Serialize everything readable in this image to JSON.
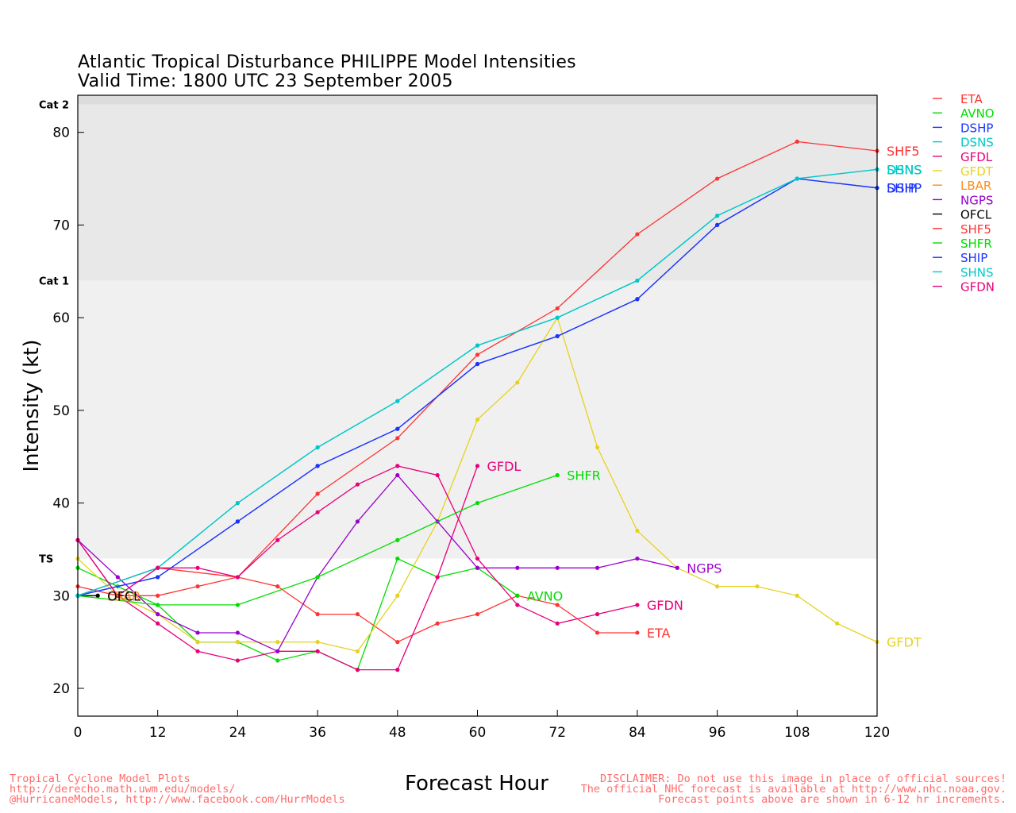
{
  "title_line1": "Atlantic Tropical Disturbance PHILIPPE Model Intensities",
  "title_line2": "Valid Time: 1800 UTC 23 September 2005",
  "footer_left": [
    "Tropical Cyclone Model Plots",
    "http://derecho.math.uwm.edu/models/",
    "@HurricaneModels, http://www.facebook.com/HurrModels"
  ],
  "footer_right": [
    "DISCLAIMER: Do not use this image in place of official sources!",
    "The official NHC forecast is available at http://www.nhc.noaa.gov.",
    "Forecast points above are shown in 6-12 hr increments."
  ],
  "chart_data": {
    "type": "line",
    "xlabel": "Forecast Hour",
    "ylabel": "Intensity (kt)",
    "xlim": [
      0,
      120
    ],
    "ylim": [
      17,
      84
    ],
    "xticks": [
      0,
      12,
      24,
      36,
      48,
      60,
      72,
      84,
      96,
      108,
      120
    ],
    "yticks": [
      20,
      30,
      40,
      50,
      60,
      70,
      80
    ],
    "bands": [
      {
        "label": "TS",
        "from": 34,
        "to": 64,
        "color": "#f0f0f0"
      },
      {
        "label": "Cat 1",
        "from": 64,
        "to": 83,
        "color": "#e8e8e8"
      },
      {
        "label": "Cat 2",
        "from": 83,
        "to": 84,
        "color": "#dcdcdc"
      }
    ],
    "series": [
      {
        "name": "ETA",
        "color": "#ff3333",
        "label": "ETA",
        "x": [
          0,
          6,
          12,
          18,
          24,
          30,
          36,
          42,
          48,
          54,
          60,
          66,
          72,
          78,
          84
        ],
        "y": [
          31,
          30,
          30,
          31,
          32,
          31,
          28,
          28,
          25,
          27,
          28,
          30,
          29,
          26,
          26
        ]
      },
      {
        "name": "AVNO",
        "color": "#00dd00",
        "label": "AVNO",
        "x": [
          0,
          6,
          12,
          18,
          24,
          30,
          36,
          42,
          48,
          54,
          60,
          66
        ],
        "y": [
          33,
          31,
          29,
          25,
          25,
          23,
          24,
          22,
          34,
          32,
          33,
          30
        ]
      },
      {
        "name": "DSHP",
        "color": "#1a33ff",
        "label": "DSHP",
        "x": [
          0,
          12,
          24,
          36,
          48,
          60,
          72,
          84,
          96,
          108,
          120
        ],
        "y": [
          30,
          32,
          38,
          44,
          48,
          55,
          58,
          62,
          70,
          75,
          74
        ]
      },
      {
        "name": "DSNS",
        "color": "#00c8c8",
        "label": "DSNS",
        "x": [
          0,
          12,
          24,
          36,
          48,
          60,
          72,
          84,
          96,
          108,
          120
        ],
        "y": [
          30,
          33,
          40,
          46,
          51,
          57,
          60,
          64,
          71,
          75,
          76
        ]
      },
      {
        "name": "GFDL",
        "color": "#e6007a",
        "label": "GFDL",
        "x": [
          0,
          6,
          12,
          18,
          24,
          30,
          36,
          42,
          48,
          54,
          60
        ],
        "y": [
          36,
          30,
          27,
          24,
          23,
          24,
          24,
          22,
          22,
          32,
          44
        ]
      },
      {
        "name": "GFDT",
        "color": "#e6d21e",
        "label": "GFDT",
        "x": [
          0,
          6,
          12,
          18,
          24,
          30,
          36,
          42,
          48,
          54,
          60,
          66,
          72,
          78,
          84,
          90,
          96,
          102,
          108,
          114,
          120
        ],
        "y": [
          34,
          30,
          28,
          25,
          25,
          25,
          25,
          24,
          30,
          38,
          49,
          53,
          60,
          46,
          37,
          33,
          31,
          31,
          30,
          27,
          25
        ]
      },
      {
        "name": "LBAR",
        "color": "#ff8c1a",
        "label": "LBAR",
        "x": [
          0,
          3
        ],
        "y": [
          30,
          30
        ]
      },
      {
        "name": "NGPS",
        "color": "#9900cc",
        "label": "NGPS",
        "x": [
          0,
          6,
          12,
          18,
          24,
          30,
          36,
          42,
          48,
          54,
          60,
          66,
          72,
          78,
          84,
          90
        ],
        "y": [
          36,
          32,
          28,
          26,
          26,
          24,
          32,
          38,
          43,
          38,
          33,
          33,
          33,
          33,
          34,
          33
        ]
      },
      {
        "name": "OFCL",
        "color": "#000000",
        "label": "OFCL",
        "x": [
          0,
          3
        ],
        "y": [
          30,
          30
        ]
      },
      {
        "name": "SHF5",
        "color": "#ff3333",
        "label": "SHF5",
        "x": [
          0,
          12,
          24,
          36,
          48,
          60,
          72,
          84,
          96,
          108,
          120
        ],
        "y": [
          30,
          33,
          32,
          41,
          47,
          56,
          61,
          69,
          75,
          79,
          78
        ]
      },
      {
        "name": "SHFR",
        "color": "#00dd00",
        "label": "SHFR",
        "x": [
          0,
          12,
          24,
          36,
          48,
          60,
          72
        ],
        "y": [
          30,
          29,
          29,
          32,
          36,
          40,
          43
        ]
      },
      {
        "name": "SHIP",
        "color": "#1a33ff",
        "label": "SHIP",
        "x": [
          0,
          12,
          24,
          36,
          48,
          60,
          72,
          84,
          96,
          108,
          120
        ],
        "y": [
          30,
          32,
          38,
          44,
          48,
          55,
          58,
          62,
          70,
          75,
          74
        ]
      },
      {
        "name": "SHNS",
        "color": "#00c8c8",
        "label": "SHNS",
        "x": [
          0,
          12,
          24,
          36,
          48,
          60,
          72,
          84,
          96,
          108,
          120
        ],
        "y": [
          30,
          33,
          40,
          46,
          51,
          57,
          60,
          64,
          71,
          75,
          76
        ]
      },
      {
        "name": "GFDN",
        "color": "#e6007a",
        "label": "GFDN",
        "x": [
          0,
          6,
          12,
          18,
          24,
          30,
          36,
          42,
          48,
          54,
          60,
          66,
          72,
          78,
          84
        ],
        "y": [
          36,
          30,
          33,
          33,
          32,
          36,
          39,
          42,
          44,
          43,
          34,
          29,
          27,
          28,
          29
        ]
      }
    ]
  }
}
